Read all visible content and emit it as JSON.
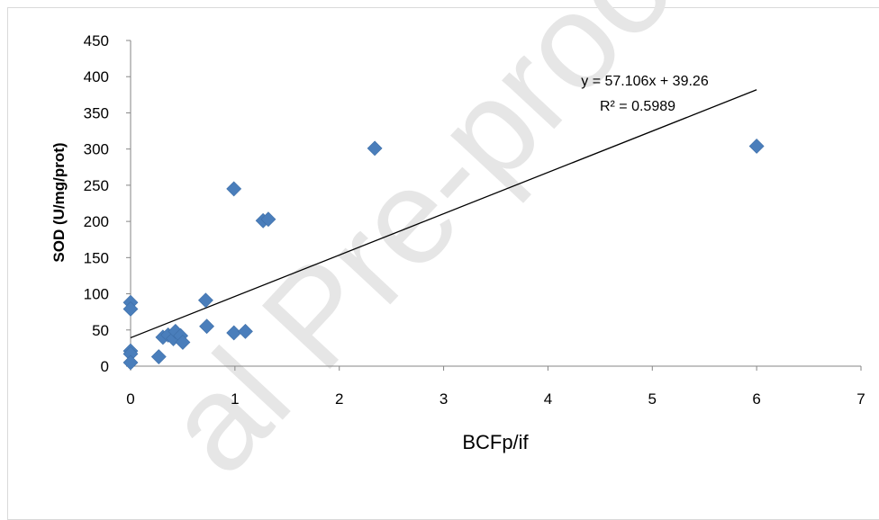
{
  "chart_data": {
    "type": "scatter",
    "xlabel": "BCFp/if",
    "ylabel": "SOD  (U/mg/prot)",
    "xlim": [
      0,
      7
    ],
    "ylim": [
      0,
      450
    ],
    "x_ticks": [
      "0",
      "1",
      "2",
      "3",
      "4",
      "5",
      "6",
      "7"
    ],
    "y_ticks": [
      "0",
      "50",
      "100",
      "150",
      "200",
      "250",
      "300",
      "350",
      "400",
      "450"
    ],
    "grid": false,
    "legend": "none",
    "marker_color": "#4a7ebb",
    "points": [
      {
        "x": 0.0,
        "y": 88
      },
      {
        "x": 0.0,
        "y": 79
      },
      {
        "x": 0.0,
        "y": 21
      },
      {
        "x": 0.0,
        "y": 17
      },
      {
        "x": 0.0,
        "y": 5
      },
      {
        "x": 0.27,
        "y": 13
      },
      {
        "x": 0.31,
        "y": 40
      },
      {
        "x": 0.36,
        "y": 43
      },
      {
        "x": 0.41,
        "y": 38
      },
      {
        "x": 0.43,
        "y": 48
      },
      {
        "x": 0.48,
        "y": 42
      },
      {
        "x": 0.5,
        "y": 33
      },
      {
        "x": 0.72,
        "y": 91
      },
      {
        "x": 0.73,
        "y": 55
      },
      {
        "x": 0.99,
        "y": 245
      },
      {
        "x": 0.99,
        "y": 46
      },
      {
        "x": 1.1,
        "y": 48
      },
      {
        "x": 1.27,
        "y": 201
      },
      {
        "x": 1.32,
        "y": 203
      },
      {
        "x": 2.34,
        "y": 301
      },
      {
        "x": 6.0,
        "y": 304
      }
    ],
    "trendline": {
      "slope": 57.106,
      "intercept": 39.26,
      "x_range": [
        0,
        6
      ]
    },
    "equation": "y = 57.106x + 39.26",
    "r_squared": "R² = 0.5989"
  },
  "watermark": "al Pre-proof"
}
